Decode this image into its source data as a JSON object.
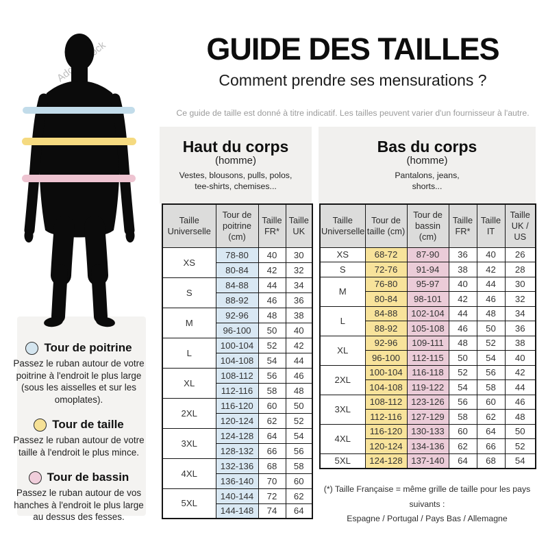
{
  "page": {
    "title": "GUIDE DES TAILLES",
    "subtitle": "Comment prendre ses mensurations ?",
    "disclaimer": "Ce guide de taille est donné à titre indicatif. Les tailles peuvent varier d'un fournisseur à l'autre."
  },
  "colors": {
    "cell_blue": "#d9e8f3",
    "cell_yellow": "#f8e39b",
    "cell_pink": "#ebccd8",
    "band_blue": "#c2dcea",
    "band_yellow": "#f5da80",
    "band_pink": "#eec4d1",
    "band_blue_light": "#d4e5ef",
    "band_yellow_light": "#f6e196",
    "band_pink_light": "#f0cedb",
    "header_grey": "#dcdcdb",
    "panel_grey": "#f1f0ee"
  },
  "figure": {
    "watermark": "Adobe Stock",
    "bands": [
      {
        "name": "tour-de-poitrine-band",
        "color": "#c2dcea"
      },
      {
        "name": "tour-de-taille-band",
        "color": "#f5da80"
      },
      {
        "name": "tour-de-bassin-band",
        "color": "#eec4d1"
      }
    ]
  },
  "legend": [
    {
      "title": "Tour de poitrine",
      "text": "Passez le ruban autour de votre poitrine à l'endroit le plus large (sous les aisselles et sur les omoplates)."
    },
    {
      "title": "Tour de taille",
      "text": "Passez le ruban autour de votre taille à l'endroit le plus mince."
    },
    {
      "title": "Tour de bassin",
      "text": "Passez le ruban autour de vos hanches à l'endroit le plus large au dessus des fesses."
    }
  ],
  "upper_table": {
    "title": "Haut du corps",
    "subtitle": "(homme)",
    "description": "Vestes, blousons, pulls, polos, tee-shirts, chemises...",
    "headers": [
      "Taille Universelle",
      "Tour de poitrine (cm)",
      "Taille FR*",
      "Taille UK"
    ],
    "groups": [
      {
        "size": "XS",
        "rows": [
          [
            "78-80",
            "40",
            "30"
          ],
          [
            "80-84",
            "42",
            "32"
          ]
        ]
      },
      {
        "size": "S",
        "rows": [
          [
            "84-88",
            "44",
            "34"
          ],
          [
            "88-92",
            "46",
            "36"
          ]
        ]
      },
      {
        "size": "M",
        "rows": [
          [
            "92-96",
            "48",
            "38"
          ],
          [
            "96-100",
            "50",
            "40"
          ]
        ]
      },
      {
        "size": "L",
        "rows": [
          [
            "100-104",
            "52",
            "42"
          ],
          [
            "104-108",
            "54",
            "44"
          ]
        ]
      },
      {
        "size": "XL",
        "rows": [
          [
            "108-112",
            "56",
            "46"
          ],
          [
            "112-116",
            "58",
            "48"
          ]
        ]
      },
      {
        "size": "2XL",
        "rows": [
          [
            "116-120",
            "60",
            "50"
          ],
          [
            "120-124",
            "62",
            "52"
          ]
        ]
      },
      {
        "size": "3XL",
        "rows": [
          [
            "124-128",
            "64",
            "54"
          ],
          [
            "128-132",
            "66",
            "56"
          ]
        ]
      },
      {
        "size": "4XL",
        "rows": [
          [
            "132-136",
            "68",
            "58"
          ],
          [
            "136-140",
            "70",
            "60"
          ]
        ]
      },
      {
        "size": "5XL",
        "rows": [
          [
            "140-144",
            "72",
            "62"
          ],
          [
            "144-148",
            "74",
            "64"
          ]
        ]
      }
    ]
  },
  "lower_table": {
    "title": "Bas du corps",
    "subtitle": "(homme)",
    "description": "Pantalons, jeans, shorts...",
    "headers": [
      "Taille Universelle",
      "Tour de taille (cm)",
      "Tour de bassin (cm)",
      "Taille FR*",
      "Taille IT",
      "Taille UK / US"
    ],
    "groups": [
      {
        "size": "XS",
        "rows": [
          [
            "68-72",
            "87-90",
            "36",
            "40",
            "26"
          ]
        ]
      },
      {
        "size": "S",
        "rows": [
          [
            "72-76",
            "91-94",
            "38",
            "42",
            "28"
          ]
        ]
      },
      {
        "size": "M",
        "rows": [
          [
            "76-80",
            "95-97",
            "40",
            "44",
            "30"
          ],
          [
            "80-84",
            "98-101",
            "42",
            "46",
            "32"
          ]
        ]
      },
      {
        "size": "L",
        "rows": [
          [
            "84-88",
            "102-104",
            "44",
            "48",
            "34"
          ],
          [
            "88-92",
            "105-108",
            "46",
            "50",
            "36"
          ]
        ]
      },
      {
        "size": "XL",
        "rows": [
          [
            "92-96",
            "109-111",
            "48",
            "52",
            "38"
          ],
          [
            "96-100",
            "112-115",
            "50",
            "54",
            "40"
          ]
        ]
      },
      {
        "size": "2XL",
        "rows": [
          [
            "100-104",
            "116-118",
            "52",
            "56",
            "42"
          ],
          [
            "104-108",
            "119-122",
            "54",
            "58",
            "44"
          ]
        ]
      },
      {
        "size": "3XL",
        "rows": [
          [
            "108-112",
            "123-126",
            "56",
            "60",
            "46"
          ],
          [
            "112-116",
            "127-129",
            "58",
            "62",
            "48"
          ]
        ]
      },
      {
        "size": "4XL",
        "rows": [
          [
            "116-120",
            "130-133",
            "60",
            "64",
            "50"
          ],
          [
            "120-124",
            "134-136",
            "62",
            "66",
            "52"
          ]
        ]
      },
      {
        "size": "5XL",
        "rows": [
          [
            "124-128",
            "137-140",
            "64",
            "68",
            "54"
          ]
        ]
      }
    ]
  },
  "footnote": {
    "line1": "(*) Taille Française = même grille de taille pour les pays suivants :",
    "line2": "Espagne / Portugal / Pays Bas / Allemagne"
  }
}
